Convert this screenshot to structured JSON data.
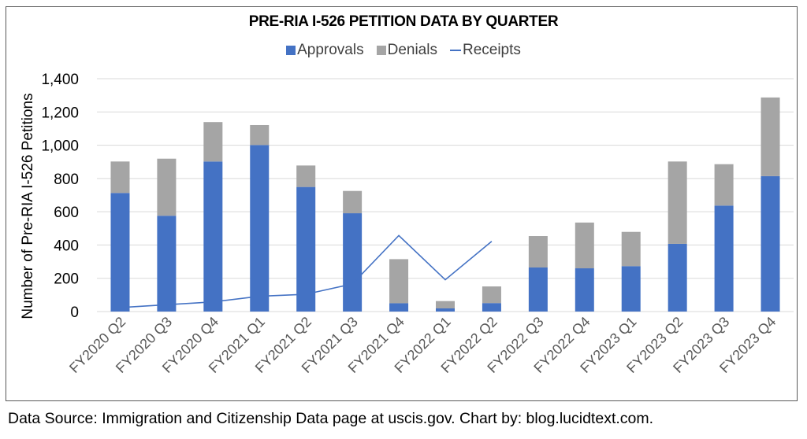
{
  "footer": {
    "source": "Data Source: Immigration and Citizenship Data page at uscis.gov. Chart by: blog.lucidtext.com."
  },
  "chart_data": {
    "type": "bar",
    "stacked": true,
    "title": "PRE-RIA I-526 PETITION DATA BY QUARTER",
    "xlabel": "",
    "ylabel": "Number of Pre-RIA I-526 Petitions",
    "ylim": [
      0,
      1400
    ],
    "yticks": [
      0,
      200,
      400,
      600,
      800,
      1000,
      1200,
      1400
    ],
    "ytick_labels": [
      "0",
      "200",
      "400",
      "600",
      "800",
      "1,000",
      "1,200",
      "1,400"
    ],
    "grid": true,
    "legend_position": "top-center",
    "categories": [
      "FY2020 Q2",
      "FY2020 Q3",
      "FY2020 Q4",
      "FY2021 Q1",
      "FY2021 Q2",
      "FY2021 Q3",
      "FY2021 Q4",
      "FY2022 Q1",
      "FY2022 Q2",
      "FY2022 Q3",
      "FY2022 Q4",
      "FY2023 Q1",
      "FY2023 Q2",
      "FY2023 Q3",
      "FY2023 Q4"
    ],
    "series": [
      {
        "name": "Approvals",
        "kind": "bar",
        "color": "#4472C4",
        "values": [
          713,
          576,
          902,
          1001,
          749,
          591,
          50,
          19,
          51,
          265,
          260,
          273,
          407,
          637,
          814
        ]
      },
      {
        "name": "Denials",
        "kind": "bar",
        "color": "#A5A5A5",
        "values": [
          189,
          343,
          237,
          120,
          129,
          134,
          265,
          44,
          100,
          189,
          275,
          206,
          495,
          249,
          473
        ]
      },
      {
        "name": "Receipts",
        "kind": "line",
        "color": "#4472C4",
        "values": [
          24,
          41,
          58,
          92,
          104,
          166,
          457,
          191,
          422,
          null,
          null,
          null,
          null,
          null,
          null
        ]
      }
    ]
  }
}
